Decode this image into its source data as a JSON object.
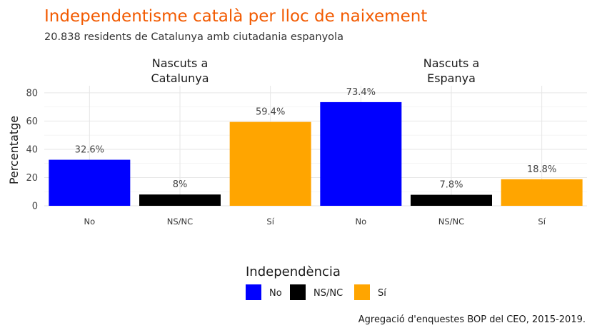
{
  "chart_data": {
    "type": "bar",
    "title": "Independentisme català per lloc de naixement",
    "subtitle": "20.838 residents de Catalunya amb ciutadania espanyola",
    "caption": "Agregació d'enquestes BOP del CEO, 2015-2019.",
    "ylabel": "Percentatge",
    "xlabel": "",
    "ylim": [
      0,
      85
    ],
    "yticks": [
      0,
      20,
      40,
      60,
      80
    ],
    "grid": true,
    "categories": [
      "No",
      "NS/NC",
      "Sí"
    ],
    "facets": [
      {
        "label_lines": [
          "Nascuts a",
          "Catalunya"
        ],
        "values": [
          32.6,
          8,
          59.4
        ],
        "labels": [
          "32.6%",
          "8%",
          "59.4%"
        ]
      },
      {
        "label_lines": [
          "Nascuts a",
          "Espanya"
        ],
        "values": [
          73.4,
          7.8,
          18.8
        ],
        "labels": [
          "73.4%",
          "7.8%",
          "18.8%"
        ]
      }
    ],
    "colors": [
      "#0000ff",
      "#000000",
      "#ffa500"
    ],
    "legend": {
      "title": "Independència",
      "position": "bottom",
      "items": [
        "No",
        "NS/NC",
        "Sí"
      ]
    }
  }
}
